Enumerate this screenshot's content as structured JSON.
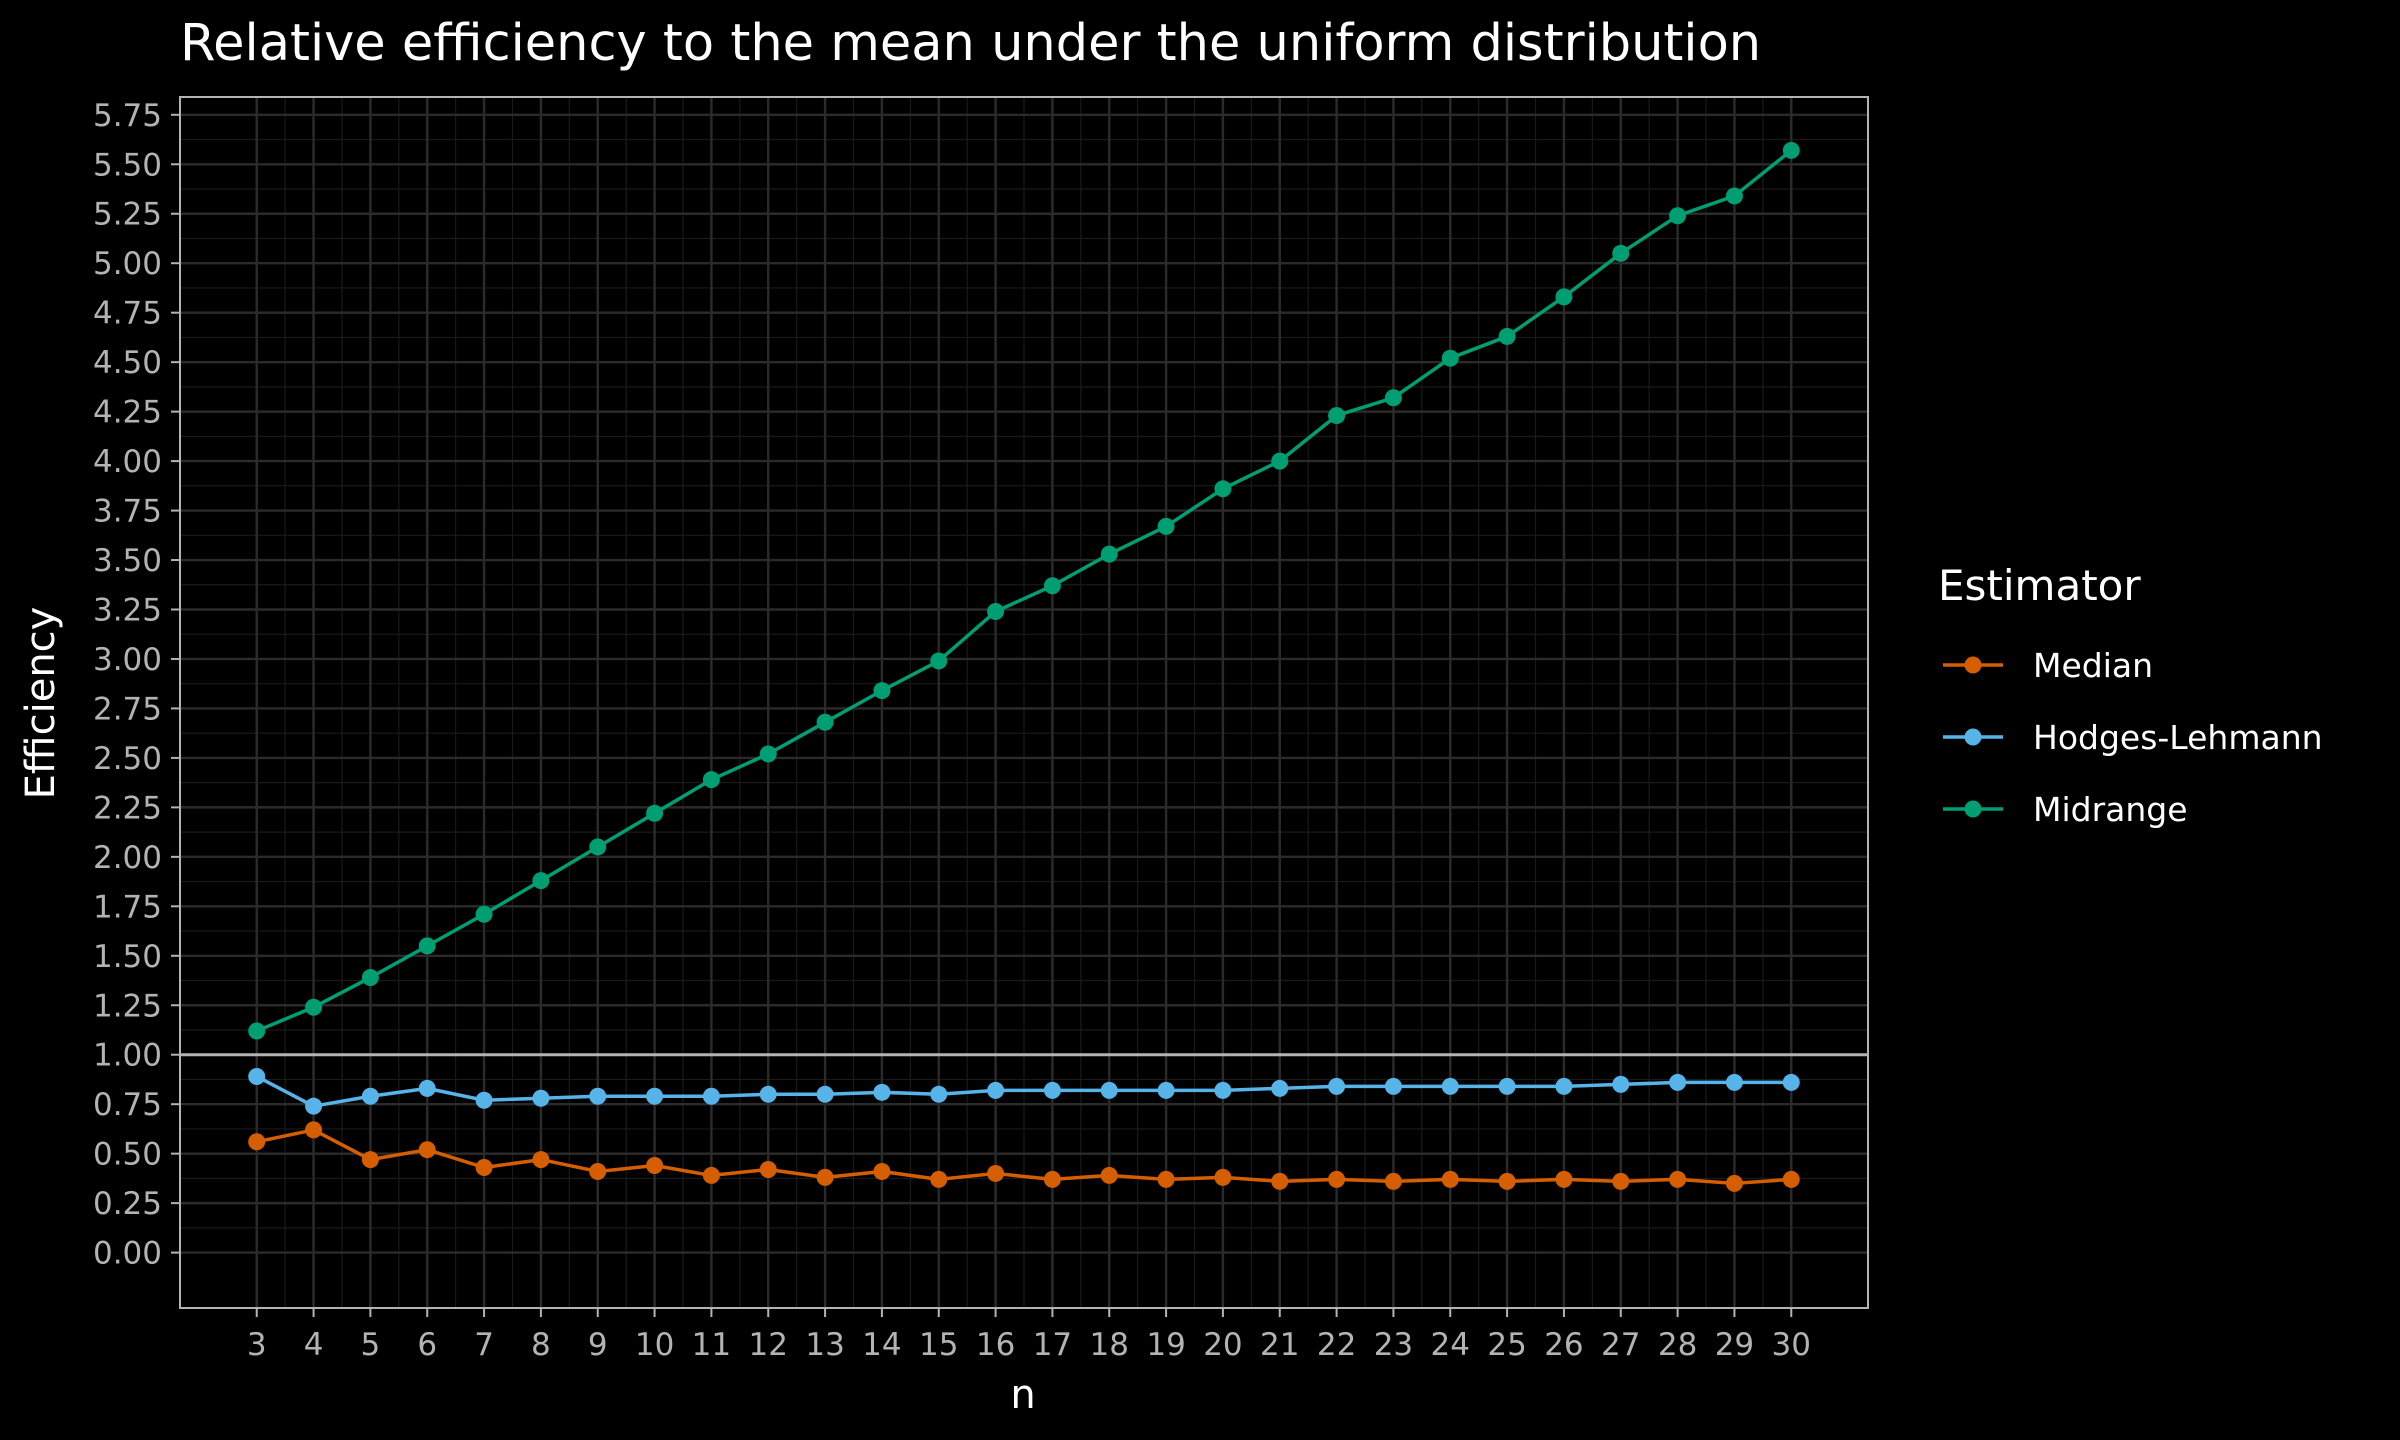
{
  "chart_data": {
    "type": "line",
    "title": "Relative efficiency to the mean under the uniform distribution",
    "xlabel": "n",
    "ylabel": "Efficiency",
    "x": [
      3,
      4,
      5,
      6,
      7,
      8,
      9,
      10,
      11,
      12,
      13,
      14,
      15,
      16,
      17,
      18,
      19,
      20,
      21,
      22,
      23,
      24,
      25,
      26,
      27,
      28,
      29,
      30
    ],
    "xlim": [
      1.65,
      31.35
    ],
    "ylim": [
      -0.28,
      5.84
    ],
    "y_ticks": [
      "0.00",
      "0.25",
      "0.50",
      "0.75",
      "1.00",
      "1.25",
      "1.50",
      "1.75",
      "2.00",
      "2.25",
      "2.50",
      "2.75",
      "3.00",
      "3.25",
      "3.50",
      "3.75",
      "4.00",
      "4.25",
      "4.50",
      "4.75",
      "5.00",
      "5.25",
      "5.50",
      "5.75"
    ],
    "x_ticks": [
      "3",
      "4",
      "5",
      "6",
      "7",
      "8",
      "9",
      "10",
      "11",
      "12",
      "13",
      "14",
      "15",
      "16",
      "17",
      "18",
      "19",
      "20",
      "21",
      "22",
      "23",
      "24",
      "25",
      "26",
      "27",
      "28",
      "29",
      "30"
    ],
    "reference_line": 1.0,
    "grid": true,
    "legend": {
      "title": "Estimator",
      "placement": "right"
    },
    "series": [
      {
        "name": "Median",
        "color": "#D55E00",
        "values": [
          0.56,
          0.62,
          0.47,
          0.52,
          0.43,
          0.47,
          0.41,
          0.44,
          0.39,
          0.42,
          0.38,
          0.41,
          0.37,
          0.4,
          0.37,
          0.39,
          0.37,
          0.38,
          0.36,
          0.37,
          0.36,
          0.37,
          0.36,
          0.37,
          0.36,
          0.37,
          0.35,
          0.37
        ]
      },
      {
        "name": "Hodges-Lehmann",
        "color": "#56B4E9",
        "values": [
          0.89,
          0.74,
          0.79,
          0.83,
          0.77,
          0.78,
          0.79,
          0.79,
          0.79,
          0.8,
          0.8,
          0.81,
          0.8,
          0.82,
          0.82,
          0.82,
          0.82,
          0.82,
          0.83,
          0.84,
          0.84,
          0.84,
          0.84,
          0.84,
          0.85,
          0.86,
          0.86,
          0.86
        ]
      },
      {
        "name": "Midrange",
        "color": "#009E73",
        "values": [
          1.12,
          1.24,
          1.39,
          1.55,
          1.71,
          1.88,
          2.05,
          2.22,
          2.39,
          2.52,
          2.68,
          2.84,
          2.99,
          3.24,
          3.37,
          3.53,
          3.67,
          3.86,
          4.0,
          4.23,
          4.32,
          4.52,
          4.63,
          4.83,
          5.05,
          5.24,
          5.34,
          5.57
        ]
      }
    ]
  },
  "colors": {
    "background": "#000000",
    "panel_border": "#b3b3b3",
    "grid_major": "#2b2b2b",
    "grid_minor": "#1a1a1a",
    "reference_line": "#b3b3b3"
  }
}
